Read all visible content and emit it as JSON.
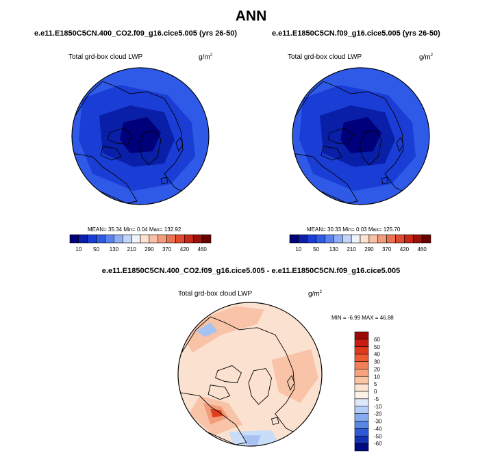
{
  "figure": {
    "title": "ANN"
  },
  "chart_data": [
    {
      "type": "heatmap",
      "title": "e.e11.E1850C5CN.400_CO2.f09_g16.cice5.005 (yrs 26-50)",
      "variable": "Total grd-box cloud LWP",
      "units": "g/m",
      "units_exponent": "2",
      "projection": "north polar stereographic",
      "stats_text": "MEAN=  35.34  Min=   0.04  Max= 132.92",
      "mean": 35.34,
      "min": 0.04,
      "max": 132.92,
      "colorbar": {
        "labels": [
          "10",
          "50",
          "130",
          "210",
          "290",
          "370",
          "420",
          "460"
        ],
        "colors": [
          "#00007a",
          "#0a1fa8",
          "#1a3dd6",
          "#2f5ae8",
          "#5a82ef",
          "#8eadf4",
          "#c3d4f8",
          "#eef2fb",
          "#fde1d2",
          "#f9c0a4",
          "#f39c7a",
          "#ec7152",
          "#e04a2e",
          "#c82818",
          "#9c1008",
          "#6a0000"
        ]
      },
      "field_colors": {
        "outer": "#2f5ae8",
        "mid": "#1a3dd6",
        "core": "#0a1fa8",
        "deep": "#00007a"
      }
    },
    {
      "type": "heatmap",
      "title": "e.e11.E1850C5CN.f09_g16.cice5.005 (yrs 26-50)",
      "variable": "Total grd-box cloud LWP",
      "units": "g/m",
      "units_exponent": "2",
      "projection": "north polar stereographic",
      "stats_text": "MEAN=  30.33  Min=   0.03  Max= 125.70",
      "mean": 30.33,
      "min": 0.03,
      "max": 125.7,
      "colorbar": {
        "labels": [
          "10",
          "50",
          "130",
          "210",
          "290",
          "370",
          "420",
          "460"
        ],
        "colors": [
          "#00007a",
          "#0a1fa8",
          "#1a3dd6",
          "#2f5ae8",
          "#5a82ef",
          "#8eadf4",
          "#c3d4f8",
          "#eef2fb",
          "#fde1d2",
          "#f9c0a4",
          "#f39c7a",
          "#ec7152",
          "#e04a2e",
          "#c82818",
          "#9c1008",
          "#6a0000"
        ]
      },
      "field_colors": {
        "outer": "#2f5ae8",
        "mid": "#1a3dd6",
        "core": "#0a1fa8",
        "deep": "#00007a"
      }
    },
    {
      "type": "heatmap",
      "title": "e.e11.E1850C5CN.400_CO2.f09_g16.cice5.005 - e.e11.E1850C5CN.f09_g16.cice5.005",
      "variable": "Total grd-box cloud LWP",
      "units": "g/m",
      "units_exponent": "2",
      "projection": "north polar stereographic",
      "stats_text": "MIN =  -6.99 MAX =  46.88",
      "min": -6.99,
      "max": 46.88,
      "colorbar": {
        "labels": [
          "60",
          "50",
          "40",
          "30",
          "20",
          "10",
          "5",
          "0",
          "-5",
          "-10",
          "-20",
          "-30",
          "-40",
          "-50",
          "-60"
        ],
        "colors": [
          "#9c0a08",
          "#c81e12",
          "#e03a1e",
          "#ee5a32",
          "#f47e56",
          "#f8a47e",
          "#fbc6a6",
          "#fde4d2",
          "#fdf0e6",
          "#dde8fb",
          "#b3cdf6",
          "#86acef",
          "#5a86e6",
          "#2f5ad6",
          "#1432b4",
          "#000a80"
        ]
      },
      "field_colors": {
        "base": "#fbe2d0",
        "warm": "#f8c3a6",
        "warmer": "#f39c7a",
        "hot": "#e0401e",
        "cool": "#c9dcf8",
        "cooler": "#a6c2f2"
      }
    }
  ]
}
